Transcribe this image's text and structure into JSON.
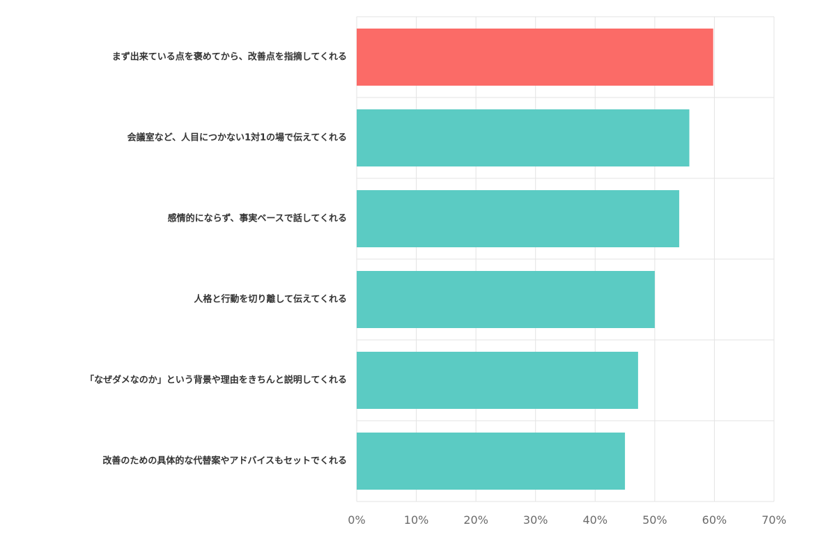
{
  "chart_data": {
    "type": "bar",
    "orientation": "horizontal",
    "title": "",
    "xlabel": "",
    "ylabel": "",
    "categories": [
      "まず出来ている点を褒めてから、改善点を指摘してくれる",
      "会議室など、人目につかない1対1の場で伝えてくれる",
      "感情的にならず、事実ベースで話してくれる",
      "人格と行動を切り離して伝えてくれる",
      "「なぜダメなのか」という背景や理由をきちんと説明してくれる",
      "改善のための具体的な代替案やアドバイスもセットでくれる"
    ],
    "values": [
      59.8,
      55.8,
      54.1,
      50.0,
      47.2,
      45.0
    ],
    "unit": "%",
    "xlim": [
      0,
      70
    ],
    "ticks": [
      0,
      10,
      20,
      30,
      40,
      50,
      60,
      70
    ],
    "tick_labels": [
      "0%",
      "10%",
      "20%",
      "30%",
      "40%",
      "50%",
      "60%",
      "70%"
    ],
    "grid": true,
    "highlight_index": 0,
    "colors": {
      "highlight": "#fb6b67",
      "default": "#5bcbc3",
      "grid": "#e3e3e3",
      "axis_text": "#6b6b6b",
      "label_text": "#333333"
    }
  }
}
